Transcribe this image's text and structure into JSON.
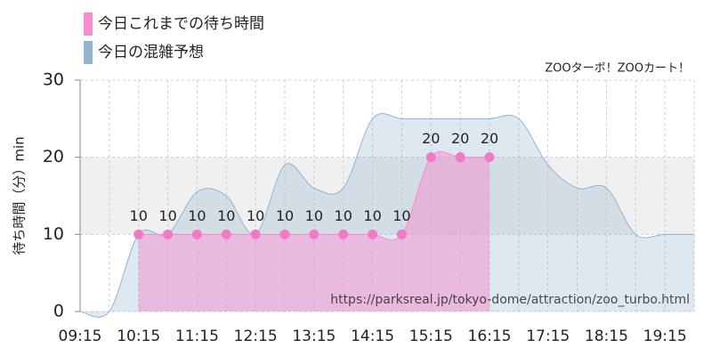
{
  "chart_data": {
    "type": "area",
    "annotation": "ZOOターボ！ZOOカート！",
    "watermark": "https://parksreal.jp/tokyo-dome/attraction/zoo_turbo.html",
    "y_label": "待ち時間（分）min",
    "categories": [
      "09:15",
      null,
      "10:15",
      null,
      "11:15",
      null,
      "12:15",
      null,
      "13:15",
      null,
      "14:15",
      null,
      "15:15",
      null,
      "16:15",
      null,
      "17:15",
      null,
      "18:15",
      null,
      "19:15",
      null
    ],
    "series": [
      {
        "name": "今日これまでの待ち時間",
        "color": "#f58ccb",
        "points": true,
        "values": [
          null,
          null,
          10,
          10,
          10,
          10,
          10,
          10,
          10,
          10,
          10,
          10,
          20,
          20,
          20,
          null,
          null,
          null,
          null,
          null,
          null,
          null
        ]
      },
      {
        "name": "今日の混雑予想",
        "color": "#92b4d2",
        "points": false,
        "values": [
          0,
          0,
          10,
          10,
          15.5,
          15,
          10,
          19,
          16,
          16,
          25,
          25,
          25,
          25,
          25,
          25,
          19,
          16,
          16,
          10,
          10,
          10
        ]
      }
    ],
    "ylim": [
      0,
      30
    ],
    "yticks": [
      0,
      10,
      20,
      30
    ],
    "grid": true
  }
}
